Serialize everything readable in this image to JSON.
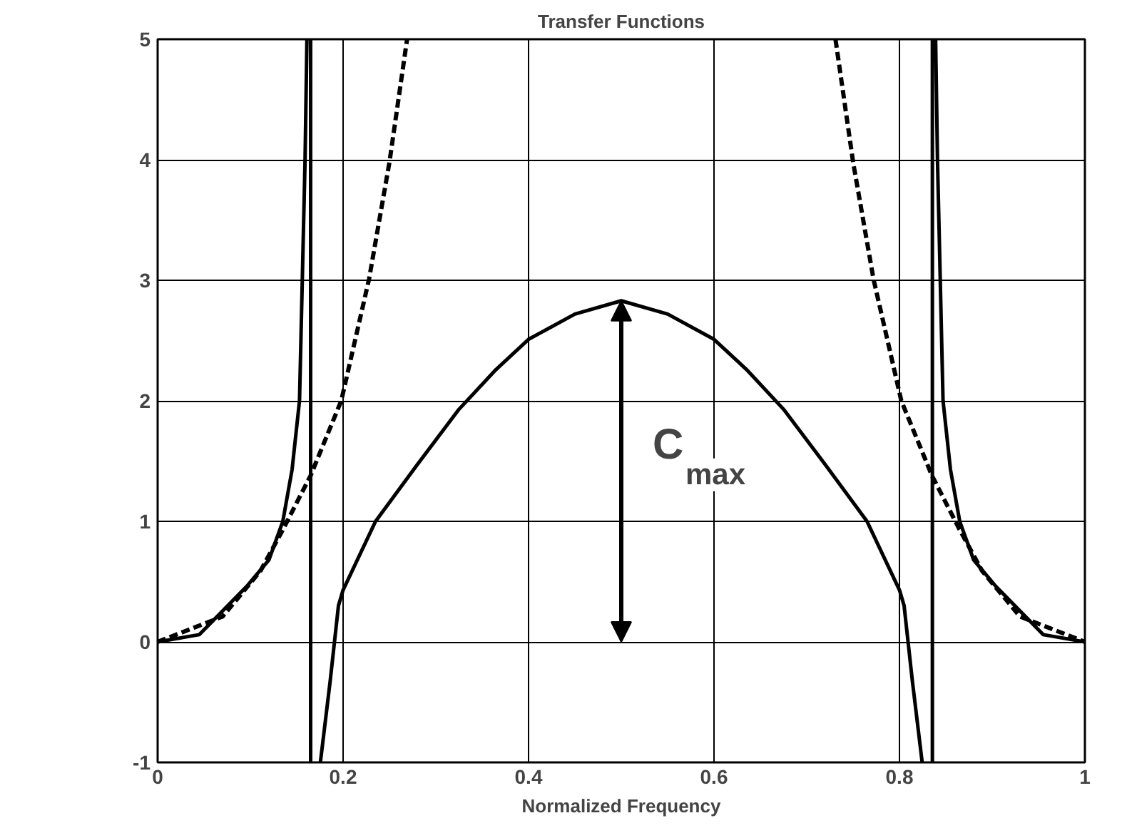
{
  "chart_data": {
    "type": "line",
    "title": "Transfer Functions",
    "xlabel": "Normalized Frequency",
    "xlim": [
      0,
      1
    ],
    "ylim": [
      -1,
      5
    ],
    "xticks": [
      0,
      0.2,
      0.4,
      0.6,
      0.8,
      1
    ],
    "yticks": [
      -1,
      0,
      1,
      2,
      3,
      4,
      5
    ],
    "grid": true,
    "series": [
      {
        "color": "#000000",
        "line_style": "solid",
        "x": [
          0,
          0.045,
          0.096,
          0.12,
          0.135,
          0.145,
          0.153,
          0.156,
          0.159,
          0.161,
          0.163,
          0.165,
          0.165,
          0.17,
          0.1755,
          0.186,
          0.195,
          0.2,
          0.235,
          0.28,
          0.325,
          0.365,
          0.4,
          0.45,
          0.5,
          0.55,
          0.6,
          0.635,
          0.675,
          0.72,
          0.765,
          0.8,
          0.805,
          0.814,
          0.8245,
          0.83,
          0.8355,
          0.8355,
          0.837,
          0.839,
          0.841,
          0.844,
          0.847,
          0.855,
          0.865,
          0.88,
          0.904,
          0.955,
          1
        ],
        "values": [
          0,
          0.06,
          0.46,
          0.68,
          1.0,
          1.43,
          2.0,
          3.0,
          4.0,
          5.0,
          null,
          5.0,
          -1.0,
          null,
          -1.0,
          -0.33,
          0.3,
          0.43,
          1.0,
          1.47,
          1.93,
          2.26,
          2.51,
          2.72,
          2.83,
          2.72,
          2.51,
          2.26,
          1.93,
          1.47,
          1.0,
          0.43,
          0.3,
          -0.33,
          -1.0,
          null,
          5.0,
          -1.0,
          null,
          5.0,
          4.0,
          3.0,
          2.0,
          1.43,
          1.0,
          0.68,
          0.46,
          0.06,
          0
        ]
      },
      {
        "color": "#000000",
        "line_style": "dashed",
        "x": [
          0,
          0.07,
          0.111,
          0.135,
          0.165,
          0.198,
          0.228,
          0.25,
          0.269,
          0.5,
          0.731,
          0.75,
          0.772,
          0.802,
          0.835,
          0.865,
          0.889,
          0.93,
          1
        ],
        "values": [
          0,
          0.21,
          0.59,
          0.93,
          1.38,
          2.0,
          3.01,
          3.98,
          5.0,
          null,
          5.0,
          3.98,
          3.01,
          2.0,
          1.38,
          0.93,
          0.59,
          0.21,
          0
        ]
      }
    ],
    "annotations": [
      {
        "text": "C$_{max}$",
        "x": 0.5,
        "y": 2.83
      }
    ]
  }
}
